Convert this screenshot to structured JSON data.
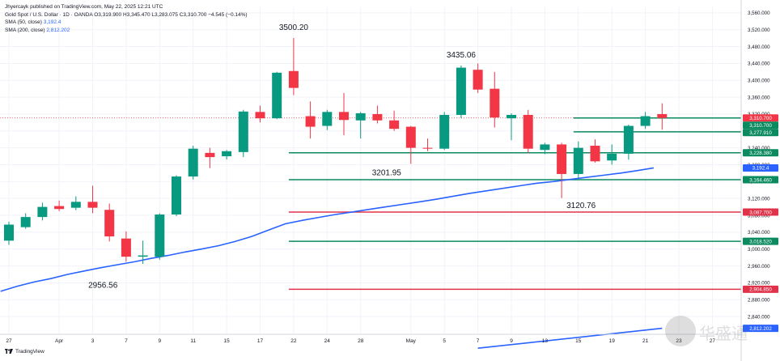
{
  "header": {
    "published_line": "Jhyercayk published on TradingView.com, May 22, 2025 12:21 UTC",
    "symbol_line_label": "Gold Spot / U.S. Dollar · 1D · OANDA",
    "ohlc": "O3,319.900 H3,345.470 L3,283.075 C3,310.700 −4.545 (−0.14%)",
    "sma50_label": "SMA (50, close)",
    "sma50_value": "3,192.4",
    "sma200_label": "SMA (200, close)",
    "sma200_value": "2,812.202"
  },
  "footer": {
    "brand": "TradingView"
  },
  "watermark": {
    "text": "华盛通",
    "icon": "watermark-logo-icon"
  },
  "colors": {
    "up": "#089981",
    "down": "#f23645",
    "sma": "#2962ff",
    "level_green": "#0b8a5f",
    "level_red": "#e0334a",
    "grid": "#f0f3fa",
    "axis_text": "#131722"
  },
  "chart_data": {
    "type": "candlestick",
    "title": "Gold Spot / U.S. Dollar · 1D · OANDA",
    "ylim": [
      2800,
      3575
    ],
    "y_ticks": [
      2840,
      2880,
      2920,
      2960,
      3000,
      3040,
      3080,
      3120,
      3160,
      3200,
      3240,
      3280,
      3320,
      3360,
      3400,
      3440,
      3480,
      3520,
      3560
    ],
    "y_tick_labels": [
      "2,840.000",
      "2,880.000",
      "2,920.000",
      "2,960.000",
      "3,000.000",
      "3,040.000",
      "3,080.000",
      "3,120.000",
      "3,160.000",
      "3,200.000",
      "3,240.000",
      "3,280.000",
      "3,320.000",
      "3,360.000",
      "3,400.000",
      "3,440.000",
      "3,480.000",
      "3,520.000",
      "3,560.000"
    ],
    "x_ticks": [
      {
        "i": 0,
        "label": "27"
      },
      {
        "i": 3,
        "label": "Apr"
      },
      {
        "i": 5,
        "label": "3"
      },
      {
        "i": 7,
        "label": "7"
      },
      {
        "i": 9,
        "label": "9"
      },
      {
        "i": 11,
        "label": "11"
      },
      {
        "i": 13,
        "label": "15"
      },
      {
        "i": 15,
        "label": "17"
      },
      {
        "i": 17,
        "label": "22"
      },
      {
        "i": 19,
        "label": "24"
      },
      {
        "i": 21,
        "label": "28"
      },
      {
        "i": 24,
        "label": "May"
      },
      {
        "i": 26,
        "label": "5"
      },
      {
        "i": 28,
        "label": "7"
      },
      {
        "i": 30,
        "label": "9"
      },
      {
        "i": 32,
        "label": "13"
      },
      {
        "i": 34,
        "label": "15"
      },
      {
        "i": 36,
        "label": "19"
      },
      {
        "i": 38,
        "label": "21"
      },
      {
        "i": 40,
        "label": "23"
      },
      {
        "i": 42,
        "label": "27"
      }
    ],
    "candles": [
      {
        "o": 3020,
        "h": 3065,
        "l": 3010,
        "c": 3058
      },
      {
        "o": 3052,
        "h": 3085,
        "l": 3048,
        "c": 3076
      },
      {
        "o": 3076,
        "h": 3110,
        "l": 3068,
        "c": 3100
      },
      {
        "o": 3102,
        "h": 3115,
        "l": 3090,
        "c": 3095
      },
      {
        "o": 3098,
        "h": 3125,
        "l": 3092,
        "c": 3112
      },
      {
        "o": 3112,
        "h": 3150,
        "l": 3085,
        "c": 3098
      },
      {
        "o": 3093,
        "h": 3108,
        "l": 3018,
        "c": 3030
      },
      {
        "o": 3025,
        "h": 3042,
        "l": 2970,
        "c": 2982
      },
      {
        "o": 2982,
        "h": 3020,
        "l": 2965,
        "c": 2985
      },
      {
        "o": 2982,
        "h": 3085,
        "l": 2975,
        "c": 3082
      },
      {
        "o": 3082,
        "h": 3175,
        "l": 3078,
        "c": 3172
      },
      {
        "o": 3172,
        "h": 3245,
        "l": 3165,
        "c": 3238
      },
      {
        "o": 3228,
        "h": 3240,
        "l": 3192,
        "c": 3218
      },
      {
        "o": 3220,
        "h": 3235,
        "l": 3212,
        "c": 3232
      },
      {
        "o": 3230,
        "h": 3330,
        "l": 3218,
        "c": 3326
      },
      {
        "o": 3325,
        "h": 3340,
        "l": 3300,
        "c": 3310
      },
      {
        "o": 3310,
        "h": 3420,
        "l": 3308,
        "c": 3418
      },
      {
        "o": 3422,
        "h": 3500.2,
        "l": 3365,
        "c": 3382
      },
      {
        "o": 3315,
        "h": 3350,
        "l": 3262,
        "c": 3290
      },
      {
        "o": 3292,
        "h": 3330,
        "l": 3282,
        "c": 3325
      },
      {
        "o": 3325,
        "h": 3370,
        "l": 3270,
        "c": 3306
      },
      {
        "o": 3305,
        "h": 3325,
        "l": 3262,
        "c": 3322
      },
      {
        "o": 3320,
        "h": 3340,
        "l": 3298,
        "c": 3305
      },
      {
        "o": 3305,
        "h": 3328,
        "l": 3280,
        "c": 3285
      },
      {
        "o": 3290,
        "h": 3292,
        "l": 3201.95,
        "c": 3240
      },
      {
        "o": 3240,
        "h": 3262,
        "l": 3232,
        "c": 3238
      },
      {
        "o": 3238,
        "h": 3325,
        "l": 3235,
        "c": 3318
      },
      {
        "o": 3318,
        "h": 3435.06,
        "l": 3310,
        "c": 3430
      },
      {
        "o": 3425,
        "h": 3440,
        "l": 3370,
        "c": 3378
      },
      {
        "o": 3380,
        "h": 3420,
        "l": 3288,
        "c": 3312
      },
      {
        "o": 3310,
        "h": 3322,
        "l": 3258,
        "c": 3318
      },
      {
        "o": 3318,
        "h": 3330,
        "l": 3228,
        "c": 3238
      },
      {
        "o": 3235,
        "h": 3252,
        "l": 3225,
        "c": 3248
      },
      {
        "o": 3248,
        "h": 3252,
        "l": 3120.76,
        "c": 3178
      },
      {
        "o": 3178,
        "h": 3255,
        "l": 3168,
        "c": 3240
      },
      {
        "o": 3245,
        "h": 3260,
        "l": 3205,
        "c": 3208
      },
      {
        "o": 3210,
        "h": 3248,
        "l": 3200,
        "c": 3226
      },
      {
        "o": 3226,
        "h": 3295,
        "l": 3212,
        "c": 3292
      },
      {
        "o": 3292,
        "h": 3325,
        "l": 3285,
        "c": 3315
      },
      {
        "o": 3319.9,
        "h": 3345.47,
        "l": 3283.075,
        "c": 3310.7
      }
    ],
    "annotations": [
      {
        "i": 17,
        "y": 3500.2,
        "text": "3500.20",
        "pos": "above"
      },
      {
        "i": 27,
        "y": 3435.06,
        "text": "3435.06",
        "pos": "above"
      },
      {
        "i": 24,
        "y": 3201.95,
        "text": "3201.95",
        "pos": "below-left"
      },
      {
        "i": 33,
        "y": 3120.76,
        "text": "3120.76",
        "pos": "below-right"
      },
      {
        "i": 6,
        "y": 2956.56,
        "text": "2956.56",
        "pos": "label"
      }
    ],
    "levels": [
      {
        "value": 3310.7,
        "label": "3,310.700",
        "color": "#f23645",
        "kind": "price"
      },
      {
        "value": 3310.7,
        "label": "3,310.700",
        "color": "#0b8a5f",
        "from_i": 34
      },
      {
        "value": 3277.91,
        "label": "3,277.910",
        "color": "#0b8a5f",
        "from_i": 34
      },
      {
        "value": 3228.38,
        "label": "3,228.380",
        "color": "#0b8a5f",
        "from_i": 17
      },
      {
        "value": 3164.46,
        "label": "3,164.460",
        "color": "#0b8a5f",
        "from_i": 17
      },
      {
        "value": 3087.7,
        "label": "3,087.700",
        "color": "#e0334a",
        "from_i": 17
      },
      {
        "value": 3018.52,
        "label": "3,018.520",
        "color": "#0b8a5f",
        "from_i": 17
      },
      {
        "value": 2904.85,
        "label": "2,904.850",
        "color": "#e0334a",
        "from_i": 17
      }
    ],
    "sma_labels": [
      {
        "value": 3192.4,
        "label": "3,192.4"
      },
      {
        "value": 2812.202,
        "label": "2,812.202"
      }
    ],
    "sma50": [
      2900,
      2912,
      2922,
      2930,
      2940,
      2948,
      2956,
      2963,
      2970,
      2978,
      2985,
      2993,
      3000,
      3008,
      3018,
      3030,
      3045,
      3060,
      3068,
      3075,
      3082,
      3088,
      3094,
      3100,
      3106,
      3112,
      3118,
      3125,
      3132,
      3138,
      3144,
      3150,
      3156,
      3160,
      3165,
      3170,
      3175,
      3180,
      3186,
      3192.4
    ],
    "sma200": [
      {
        "i": 28,
        "v": 2765
      },
      {
        "i": 39,
        "v": 2812.202
      }
    ]
  }
}
